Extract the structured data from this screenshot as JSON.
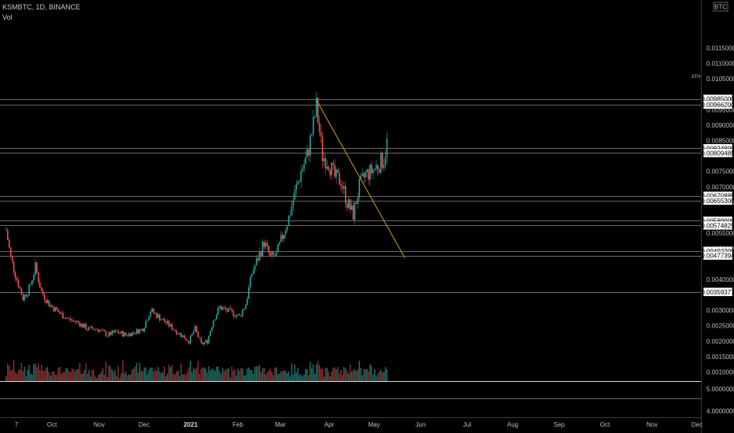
{
  "header": {
    "symbol": "KSMBTC, 1D, BINANCE",
    "vol_label": "Vol"
  },
  "axis": {
    "currency_badge": "BTC",
    "ath_label": "ATH",
    "price_ticks": [
      "0.01150000",
      "0.01100000",
      "0.01050000",
      "0.00950000",
      "0.00900000",
      "0.00850000",
      "0.00750000",
      "0.00700000",
      "0.00650000",
      "0.00550000",
      "0.00500000",
      "0.00400000",
      "0.00300000",
      "0.00250000",
      "0.00200000",
      "0.00150000",
      "0.00100000"
    ],
    "level_labels": [
      "0.00985000",
      "0.00966200",
      "0.00824800",
      "0.00809485",
      "0.00670885",
      "0.00655300",
      "0.00589900",
      "0.00574825",
      "0.00492200",
      "0.00477394",
      "0.00359377"
    ],
    "vol_ticks": [
      "5.00000000",
      "4.00000000"
    ],
    "x_ticks": [
      "7",
      "Oct",
      "Nov",
      "Dec",
      "2021",
      "Feb",
      "Mar",
      "Apr",
      "May",
      "Jun",
      "Jul",
      "Aug",
      "Sep",
      "Oct",
      "Nov",
      "Dec"
    ]
  },
  "chart_data": {
    "type": "candlestick",
    "title": "KSMBTC, 1D, BINANCE",
    "ylabel": "BTC",
    "ylim": [
      0.0007,
      0.0121
    ],
    "horizontal_levels": [
      0.00985,
      0.009662,
      0.008248,
      0.00809485,
      0.00670885,
      0.006553,
      0.005899,
      0.00574825,
      0.004922,
      0.00477394,
      0.00359377
    ],
    "ath": 0.00985,
    "trendline": {
      "from": [
        "2021-03-28",
        0.00985
      ],
      "to": [
        "2021-05-25",
        0.0047
      ]
    },
    "approx_closes": [
      [
        "2020-09-07",
        0.0056
      ],
      [
        "2020-09-10",
        0.0047
      ],
      [
        "2020-09-14",
        0.004
      ],
      [
        "2020-09-18",
        0.0034
      ],
      [
        "2020-09-22",
        0.0037
      ],
      [
        "2020-09-26",
        0.0044
      ],
      [
        "2020-09-30",
        0.0036
      ],
      [
        "2020-10-05",
        0.0032
      ],
      [
        "2020-10-12",
        0.0029
      ],
      [
        "2020-10-18",
        0.0027
      ],
      [
        "2020-10-24",
        0.0026
      ],
      [
        "2020-10-30",
        0.0024
      ],
      [
        "2020-11-05",
        0.0024
      ],
      [
        "2020-11-12",
        0.0022
      ],
      [
        "2020-11-18",
        0.0023
      ],
      [
        "2020-11-24",
        0.0022
      ],
      [
        "2020-11-30",
        0.0023
      ],
      [
        "2020-12-05",
        0.0024
      ],
      [
        "2020-12-10",
        0.003
      ],
      [
        "2020-12-15",
        0.0028
      ],
      [
        "2020-12-20",
        0.0026
      ],
      [
        "2020-12-25",
        0.0024
      ],
      [
        "2020-12-30",
        0.0022
      ],
      [
        "2021-01-04",
        0.002
      ],
      [
        "2021-01-08",
        0.0024
      ],
      [
        "2021-01-12",
        0.0019
      ],
      [
        "2021-01-16",
        0.002
      ],
      [
        "2021-01-20",
        0.0027
      ],
      [
        "2021-01-24",
        0.0031
      ],
      [
        "2021-01-28",
        0.003
      ],
      [
        "2021-02-02",
        0.0029
      ],
      [
        "2021-02-06",
        0.0028
      ],
      [
        "2021-02-10",
        0.0032
      ],
      [
        "2021-02-14",
        0.0042
      ],
      [
        "2021-02-18",
        0.0047
      ],
      [
        "2021-02-22",
        0.0052
      ],
      [
        "2021-02-26",
        0.0047
      ],
      [
        "2021-03-02",
        0.0048
      ],
      [
        "2021-03-06",
        0.0054
      ],
      [
        "2021-03-10",
        0.006
      ],
      [
        "2021-03-14",
        0.0068
      ],
      [
        "2021-03-18",
        0.0075
      ],
      [
        "2021-03-22",
        0.008
      ],
      [
        "2021-03-26",
        0.009
      ],
      [
        "2021-03-28",
        0.0096
      ],
      [
        "2021-04-01",
        0.008
      ],
      [
        "2021-04-05",
        0.0078
      ],
      [
        "2021-04-09",
        0.0073
      ],
      [
        "2021-04-13",
        0.0072
      ],
      [
        "2021-04-17",
        0.0065
      ],
      [
        "2021-04-21",
        0.0061
      ],
      [
        "2021-04-25",
        0.007
      ],
      [
        "2021-04-29",
        0.0074
      ],
      [
        "2021-05-03",
        0.0075
      ],
      [
        "2021-05-07",
        0.0077
      ],
      [
        "2021-05-11",
        0.0079
      ],
      [
        "2021-05-14",
        0.0087
      ]
    ]
  }
}
